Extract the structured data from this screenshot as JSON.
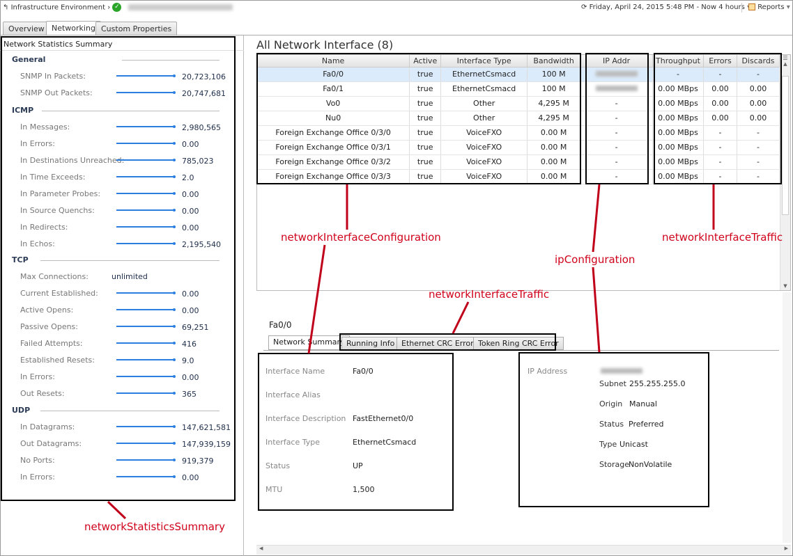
{
  "header": {
    "breadcrumb_root": "Infrastructure Environment",
    "time_range": "Friday, April 24, 2015 5:48 PM - Now 4 hours",
    "reports": "Reports"
  },
  "tabs": [
    "Overview",
    "Networking",
    "Custom Properties"
  ],
  "stats": {
    "title": "Network Statistics Summary",
    "sections": [
      {
        "name": "General",
        "rows": [
          [
            "SNMP In Packets:",
            "20,723,106"
          ],
          [
            "SNMP Out Packets:",
            "20,747,681"
          ]
        ]
      },
      {
        "name": "ICMP",
        "rows": [
          [
            "In Messages:",
            "2,980,565"
          ],
          [
            "In Errors:",
            "0.00"
          ],
          [
            "In Destinations Unreached:",
            "785,023"
          ],
          [
            "In Time Exceeds:",
            "2.0"
          ],
          [
            "In Parameter Probes:",
            "0.00"
          ],
          [
            "In Source Quenchs:",
            "0.00"
          ],
          [
            "In Redirects:",
            "0.00"
          ],
          [
            "In Echos:",
            "2,195,540"
          ]
        ]
      },
      {
        "name": "TCP",
        "rows": [
          [
            "Max Connections:",
            "unlimited"
          ],
          [
            "Current Established:",
            "0.00"
          ],
          [
            "Active Opens:",
            "0.00"
          ],
          [
            "Passive Opens:",
            "69,251"
          ],
          [
            "Failed Attempts:",
            "416"
          ],
          [
            "Established Resets:",
            "9.0"
          ],
          [
            "In Errors:",
            "0.00"
          ],
          [
            "Out Resets:",
            "365"
          ]
        ]
      },
      {
        "name": "UDP",
        "rows": [
          [
            "In Datagrams:",
            "147,621,581"
          ],
          [
            "Out Datagrams:",
            "147,939,159"
          ],
          [
            "No Ports:",
            "919,379"
          ],
          [
            "In Errors:",
            "0.00"
          ]
        ]
      }
    ]
  },
  "interfaces": {
    "title": "All Network Interface (8)",
    "columns": [
      "Name",
      "Active",
      "Interface Type",
      "Bandwidth",
      "IP Addr",
      "Throughput",
      "Errors",
      "Discards"
    ],
    "rows": [
      [
        "Fa0/0",
        "true",
        "EthernetCsmacd",
        "100 M",
        "",
        "-",
        "-",
        "-"
      ],
      [
        "Fa0/1",
        "true",
        "EthernetCsmacd",
        "100 M",
        "",
        "0.00 MBps",
        "0.00",
        "0.00"
      ],
      [
        "Vo0",
        "true",
        "Other",
        "4,295 M",
        "-",
        "0.00 MBps",
        "0.00",
        "0.00"
      ],
      [
        "Nu0",
        "true",
        "Other",
        "4,295 M",
        "-",
        "0.00 MBps",
        "0.00",
        "0.00"
      ],
      [
        "Foreign Exchange Office 0/3/0",
        "true",
        "VoiceFXO",
        "0.00 M",
        "-",
        "0.00 MBps",
        "-",
        "-"
      ],
      [
        "Foreign Exchange Office 0/3/1",
        "true",
        "VoiceFXO",
        "0.00 M",
        "-",
        "0.00 MBps",
        "-",
        "-"
      ],
      [
        "Foreign Exchange Office 0/3/2",
        "true",
        "VoiceFXO",
        "0.00 M",
        "-",
        "0.00 MBps",
        "-",
        "-"
      ],
      [
        "Foreign Exchange Office 0/3/3",
        "true",
        "VoiceFXO",
        "0.00 M",
        "-",
        "0.00 MBps",
        "-",
        "-"
      ]
    ]
  },
  "detail": {
    "title": "Fa0/0",
    "tabs": [
      "Network Summary",
      "Running Info",
      "Ethernet CRC Error",
      "Token Ring CRC Error"
    ],
    "summary": [
      [
        "Interface Name",
        "Fa0/0"
      ],
      [
        "Interface Alias",
        ""
      ],
      [
        "Interface Description",
        "FastEthernet0/0"
      ],
      [
        "Interface Type",
        "EthernetCsmacd"
      ],
      [
        "Status",
        "UP"
      ],
      [
        "MTU",
        "1,500"
      ]
    ],
    "ip_label": "IP Address",
    "ip": [
      [
        "Subnet",
        "255.255.255.0"
      ],
      [
        "Origin",
        "Manual"
      ],
      [
        "Status",
        "Preferred"
      ],
      [
        "Type",
        "Unicast"
      ],
      [
        "Storage",
        "NonVolatile"
      ]
    ]
  },
  "annotations": {
    "config": "networkInterfaceConfiguration",
    "ip": "ipConfiguration",
    "traffic": "networkInterfaceTraffic",
    "traffic2": "networkInterfaceTraffic",
    "stats": "networkStatisticsSummary"
  },
  "colors": {
    "accent": "#2a7fe0",
    "annotation": "#d0021b",
    "selected_row": "#dcebfb"
  }
}
